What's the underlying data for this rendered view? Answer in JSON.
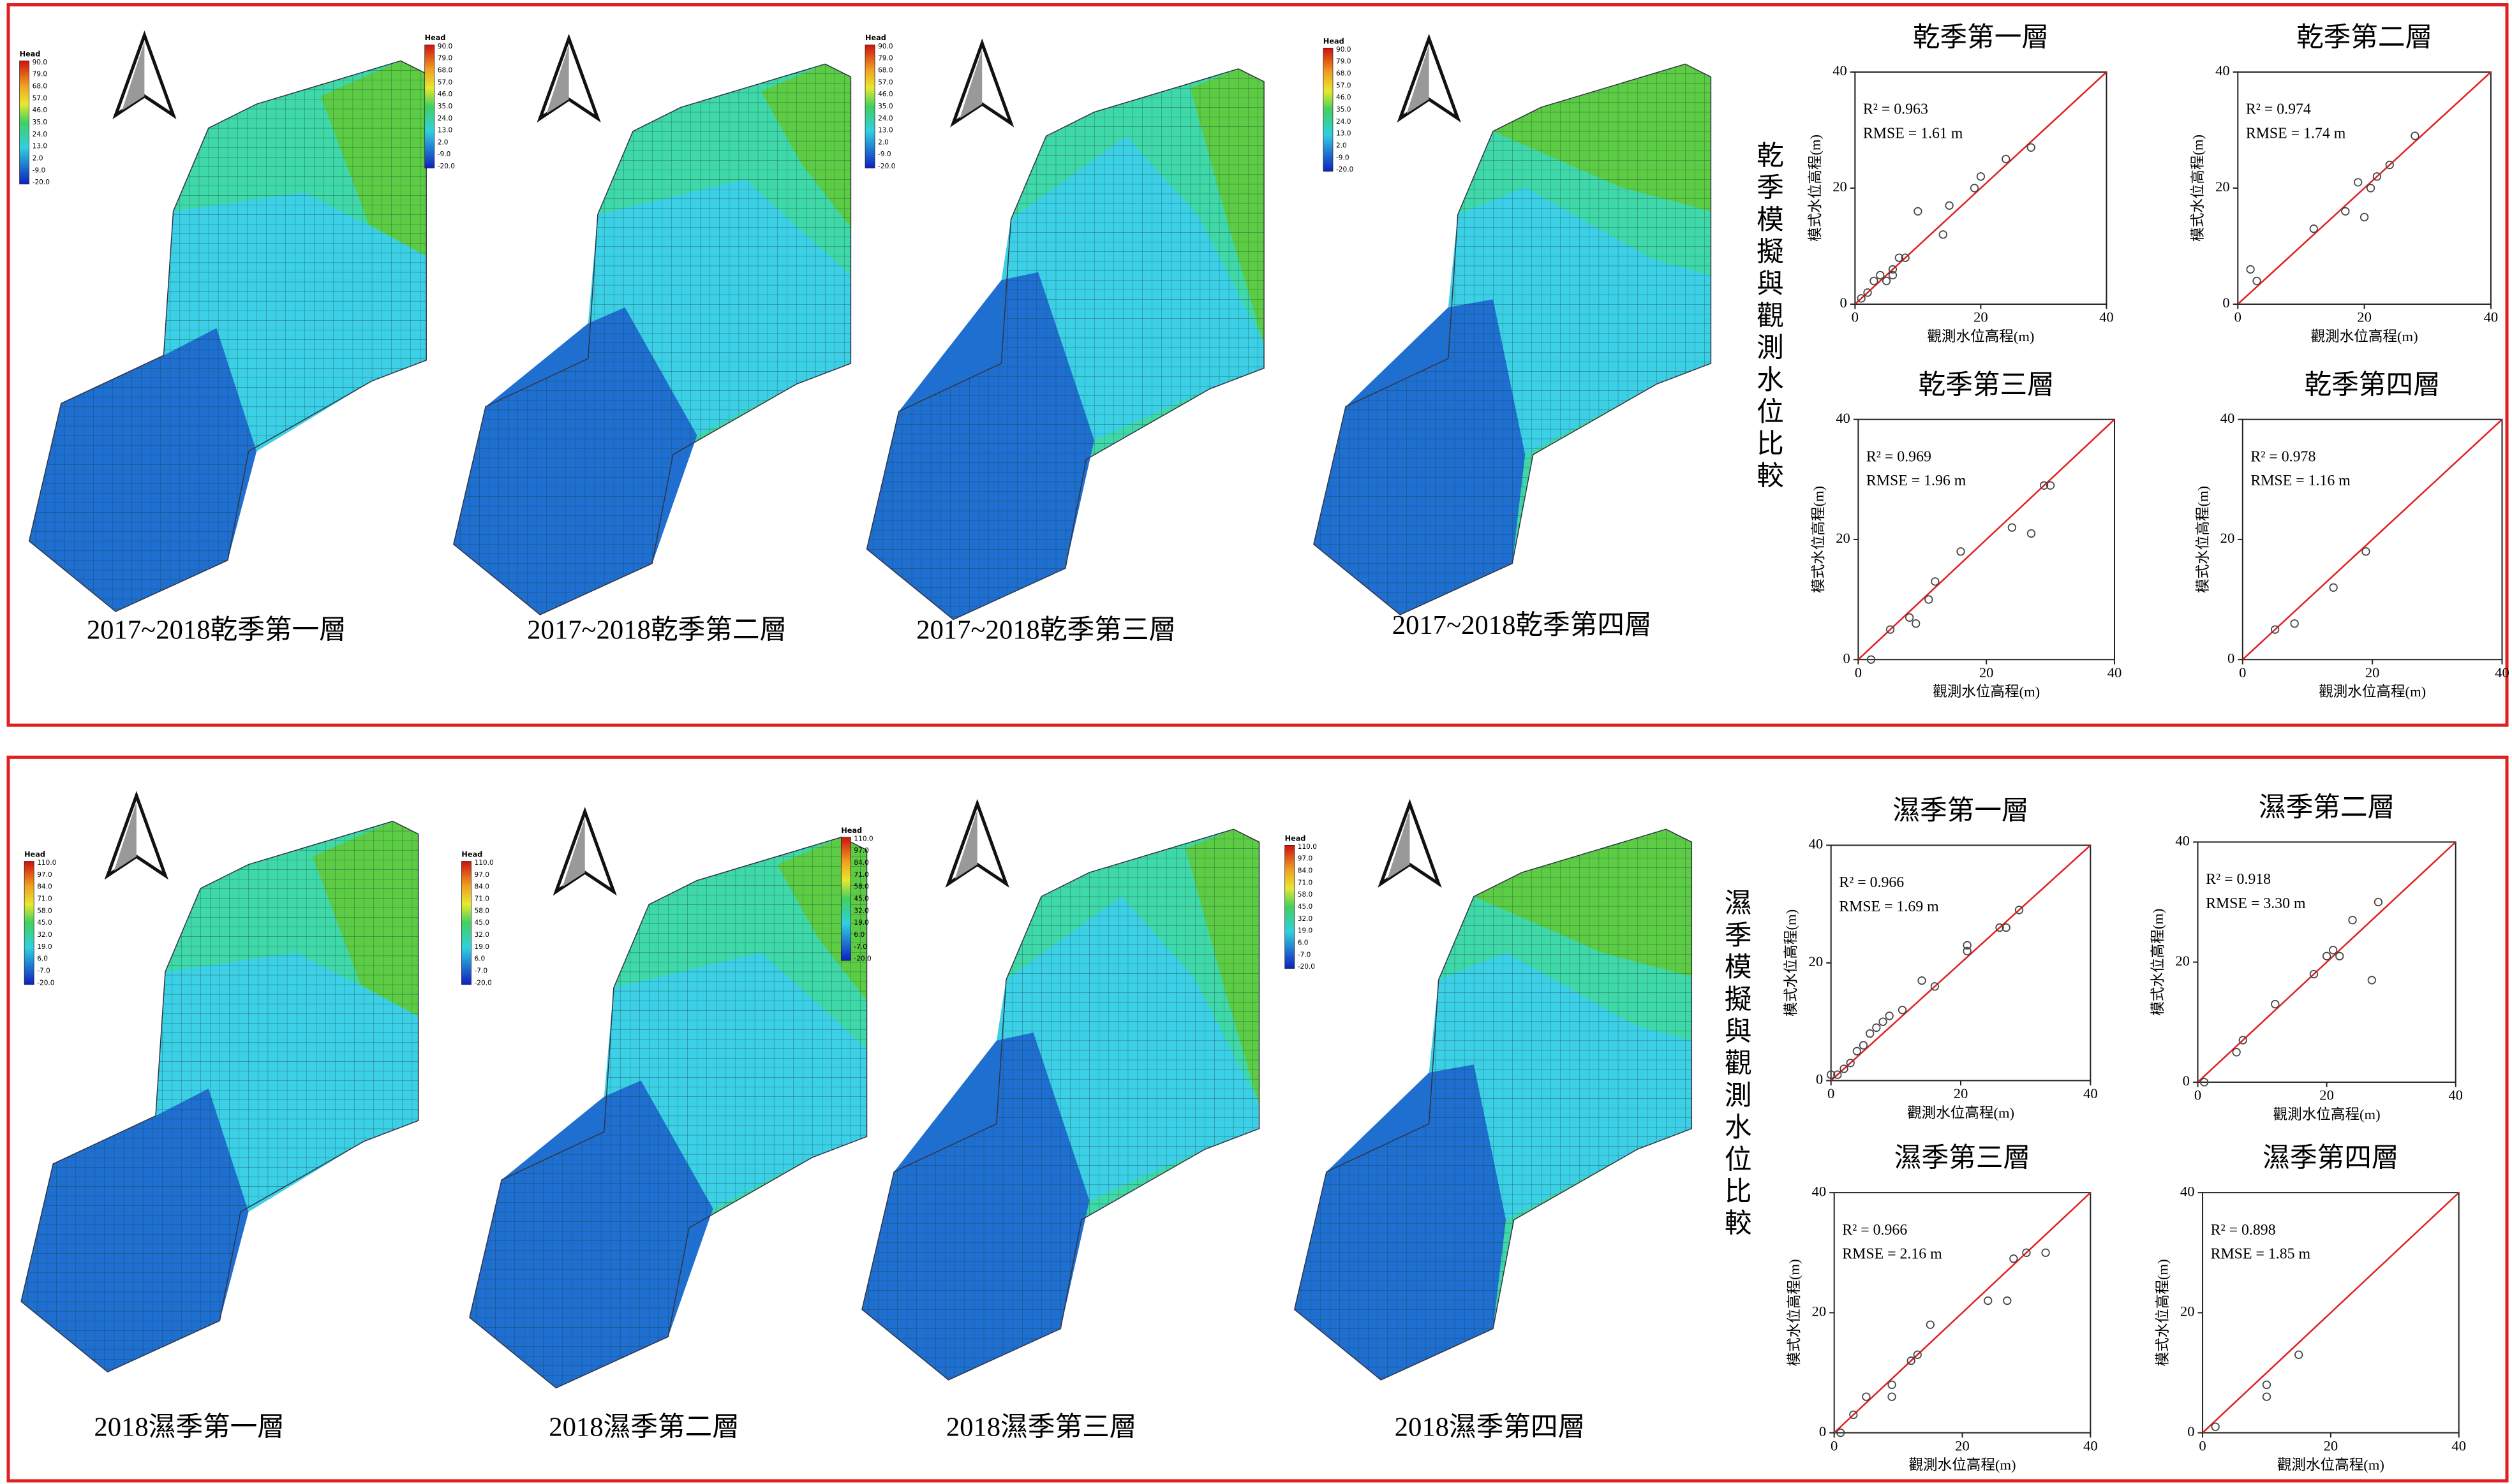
{
  "panels": [
    {
      "label": "乾季模擬與觀測水位比較",
      "legend": {
        "title": "Head",
        "labels": [
          "90.0",
          "79.0",
          "68.0",
          "57.0",
          "46.0",
          "35.0",
          "24.0",
          "13.0",
          "2.0",
          "-9.0",
          "-20.0"
        ]
      },
      "maps": [
        {
          "caption": "2017~2018乾季第一層"
        },
        {
          "caption": "2017~2018乾季第二層"
        },
        {
          "caption": "2017~2018乾季第三層"
        },
        {
          "caption": "2017~2018乾季第四層"
        }
      ]
    },
    {
      "label": "濕季模擬與觀測水位比較",
      "legend": {
        "title": "Head",
        "labels": [
          "110.0",
          "97.0",
          "84.0",
          "71.0",
          "58.0",
          "45.0",
          "32.0",
          "19.0",
          "6.0",
          "-7.0",
          "-20.0"
        ]
      },
      "maps": [
        {
          "caption": "2018濕季第一層"
        },
        {
          "caption": "2018濕季第二層"
        },
        {
          "caption": "2018濕季第三層"
        },
        {
          "caption": "2018濕季第四層"
        }
      ]
    }
  ],
  "chart_data": [
    {
      "type": "scatter",
      "title": "乾季第一層",
      "annotations": [
        "R² = 0.963",
        "RMSE = 1.61 m"
      ],
      "x_label": "觀測水位高程(m)",
      "y_label": "模式水位高程(m)",
      "color": "#444444",
      "xlim": [
        0,
        40
      ],
      "ylim": [
        0,
        40
      ],
      "xticks": [
        0,
        20,
        40
      ],
      "yticks": [
        0,
        20,
        40
      ],
      "x": [
        1,
        2,
        3,
        4,
        5,
        6,
        7,
        8,
        6,
        10,
        14,
        15,
        19,
        20,
        24,
        28
      ],
      "values": [
        1,
        2,
        4,
        5,
        4,
        6,
        8,
        8,
        5,
        16,
        12,
        17,
        20,
        22,
        25,
        27
      ]
    },
    {
      "type": "scatter",
      "title": "乾季第二層",
      "annotations": [
        "R² = 0.974",
        "RMSE = 1.74 m"
      ],
      "x_label": "觀測水位高程(m)",
      "y_label": "模式水位高程(m)",
      "color": "#444444",
      "xlim": [
        0,
        40
      ],
      "ylim": [
        0,
        40
      ],
      "xticks": [
        0,
        20,
        40
      ],
      "yticks": [
        0,
        20,
        40
      ],
      "x": [
        2,
        3,
        12,
        17,
        19,
        20,
        21,
        22,
        24,
        28
      ],
      "values": [
        6,
        4,
        13,
        16,
        21,
        15,
        20,
        22,
        24,
        29
      ]
    },
    {
      "type": "scatter",
      "title": "乾季第三層",
      "annotations": [
        "R² = 0.969",
        "RMSE = 1.96 m"
      ],
      "x_label": "觀測水位高程(m)",
      "y_label": "模式水位高程(m)",
      "color": "#444444",
      "xlim": [
        0,
        40
      ],
      "ylim": [
        0,
        40
      ],
      "xticks": [
        0,
        20,
        40
      ],
      "yticks": [
        0,
        20,
        40
      ],
      "x": [
        2,
        5,
        8,
        9,
        11,
        12,
        16,
        24,
        27,
        29,
        30
      ],
      "values": [
        0,
        5,
        7,
        6,
        10,
        13,
        18,
        22,
        21,
        29,
        29
      ]
    },
    {
      "type": "scatter",
      "title": "乾季第四層",
      "annotations": [
        "R² = 0.978",
        "RMSE = 1.16 m"
      ],
      "x_label": "觀測水位高程(m)",
      "y_label": "模式水位高程(m)",
      "color": "#444444",
      "xlim": [
        0,
        40
      ],
      "ylim": [
        0,
        40
      ],
      "xticks": [
        0,
        20,
        40
      ],
      "yticks": [
        0,
        20,
        40
      ],
      "x": [
        5,
        8,
        14,
        19
      ],
      "values": [
        5,
        6,
        12,
        18
      ]
    },
    {
      "type": "scatter",
      "title": "濕季第一層",
      "annotations": [
        "R² = 0.966",
        "RMSE = 1.69 m"
      ],
      "x_label": "觀測水位高程(m)",
      "y_label": "模式水位高程(m)",
      "color": "#444444",
      "xlim": [
        0,
        40
      ],
      "ylim": [
        0,
        40
      ],
      "xticks": [
        0,
        20,
        40
      ],
      "yticks": [
        0,
        20,
        40
      ],
      "x": [
        0,
        1,
        2,
        3,
        4,
        5,
        6,
        7,
        8,
        9,
        11,
        14,
        16,
        21,
        21,
        26,
        27,
        29
      ],
      "values": [
        1,
        1,
        2,
        3,
        5,
        6,
        8,
        9,
        10,
        11,
        12,
        17,
        16,
        22,
        23,
        26,
        26,
        29
      ]
    },
    {
      "type": "scatter",
      "title": "濕季第二層",
      "annotations": [
        "R² = 0.918",
        "RMSE = 3.30 m"
      ],
      "x_label": "觀測水位高程(m)",
      "y_label": "模式水位高程(m)",
      "color": "#444444",
      "xlim": [
        0,
        40
      ],
      "ylim": [
        0,
        40
      ],
      "xticks": [
        0,
        20,
        40
      ],
      "yticks": [
        0,
        20,
        40
      ],
      "x": [
        1,
        6,
        7,
        12,
        18,
        20,
        21,
        22,
        24,
        27,
        28
      ],
      "values": [
        0,
        5,
        7,
        13,
        18,
        21,
        22,
        21,
        27,
        17,
        30
      ]
    },
    {
      "type": "scatter",
      "title": "濕季第三層",
      "annotations": [
        "R² = 0.966",
        "RMSE = 2.16 m"
      ],
      "x_label": "觀測水位高程(m)",
      "y_label": "模式水位高程(m)",
      "color": "#444444",
      "xlim": [
        0,
        40
      ],
      "ylim": [
        0,
        40
      ],
      "xticks": [
        0,
        20,
        40
      ],
      "yticks": [
        0,
        20,
        40
      ],
      "x": [
        1,
        3,
        5,
        9,
        9,
        12,
        13,
        15,
        24,
        27,
        28,
        30,
        33
      ],
      "values": [
        0,
        3,
        6,
        6,
        8,
        12,
        13,
        18,
        22,
        22,
        29,
        30,
        30
      ]
    },
    {
      "type": "scatter",
      "title": "濕季第四層",
      "annotations": [
        "R² = 0.898",
        "RMSE = 1.85 m"
      ],
      "x_label": "觀測水位高程(m)",
      "y_label": "模式水位高程(m)",
      "color": "#444444",
      "xlim": [
        0,
        40
      ],
      "ylim": [
        0,
        40
      ],
      "xticks": [
        0,
        20,
        40
      ],
      "yticks": [
        0,
        20,
        40
      ],
      "x": [
        2,
        10,
        10,
        15
      ],
      "values": [
        1,
        6,
        8,
        13
      ]
    }
  ]
}
